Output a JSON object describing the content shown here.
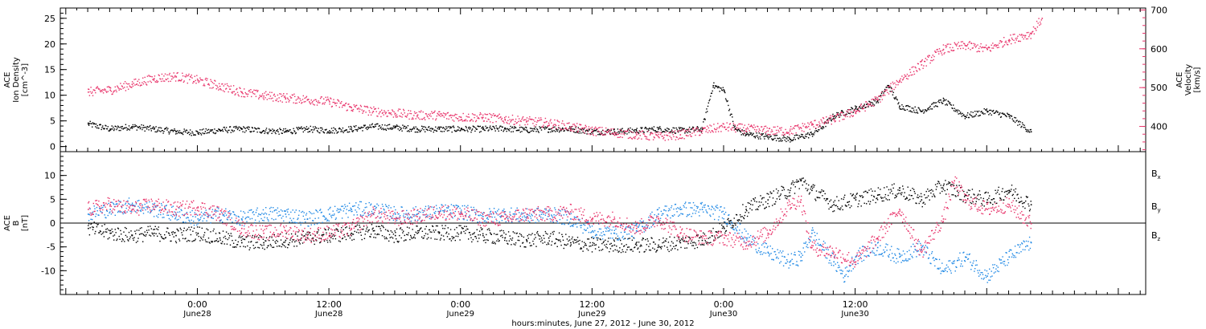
{
  "chart_data": [
    {
      "type": "scatter",
      "panel": "top",
      "left_axis": {
        "label_lines": [
          "ACE",
          "Ion Density",
          "[cm^-3]"
        ],
        "ticks": [
          0,
          5,
          10,
          15,
          20,
          25
        ],
        "range": [
          -1,
          27
        ]
      },
      "right_axis": {
        "label_lines": [
          "ACE",
          "Velocity",
          "[km/s]"
        ],
        "ticks": [
          400,
          500,
          600,
          700
        ],
        "range": [
          335,
          705
        ],
        "color": "#e8336a"
      },
      "series": [
        {
          "axis": "left",
          "color": "#000000",
          "points": [
            [
              -10.0,
              4.5
            ],
            [
              -8.0,
              3.5
            ],
            [
              -6.0,
              4.0
            ],
            [
              -4.0,
              3.5
            ],
            [
              -2.0,
              3.0
            ],
            [
              0.0,
              2.8
            ],
            [
              2.0,
              3.3
            ],
            [
              4.0,
              3.5
            ],
            [
              6.0,
              3.2
            ],
            [
              8.0,
              3.0
            ],
            [
              10.0,
              3.5
            ],
            [
              12.0,
              3.2
            ],
            [
              14.0,
              3.5
            ],
            [
              16.0,
              4.0
            ],
            [
              18.0,
              3.8
            ],
            [
              20.0,
              3.5
            ],
            [
              22.0,
              3.5
            ],
            [
              24.0,
              3.5
            ],
            [
              26.0,
              3.5
            ],
            [
              28.0,
              3.6
            ],
            [
              30.0,
              3.3
            ],
            [
              32.0,
              3.5
            ],
            [
              34.0,
              3.5
            ],
            [
              36.0,
              3.0
            ],
            [
              38.0,
              3.0
            ],
            [
              40.0,
              3.2
            ],
            [
              42.0,
              3.5
            ],
            [
              44.0,
              3.2
            ],
            [
              46.0,
              3.5
            ],
            [
              47.0,
              12.0
            ],
            [
              48.0,
              11.0
            ],
            [
              49.0,
              3.5
            ],
            [
              50.0,
              2.5
            ],
            [
              52.0,
              2.0
            ],
            [
              54.0,
              1.5
            ],
            [
              56.0,
              2.5
            ],
            [
              57.0,
              4.0
            ],
            [
              58.0,
              6.0
            ],
            [
              60.0,
              7.5
            ],
            [
              62.0,
              9.0
            ],
            [
              63.0,
              12.0
            ],
            [
              64.0,
              8.0
            ],
            [
              66.0,
              7.0
            ],
            [
              68.0,
              9.0
            ],
            [
              70.0,
              6.0
            ],
            [
              72.0,
              7.0
            ],
            [
              74.0,
              6.0
            ],
            [
              76.0,
              3.0
            ]
          ]
        },
        {
          "axis": "right",
          "color": "#e8336a",
          "points": [
            [
              -10.0,
              490
            ],
            [
              -8.0,
              495
            ],
            [
              -6.0,
              510
            ],
            [
              -4.0,
              525
            ],
            [
              -2.0,
              530
            ],
            [
              0.0,
              520
            ],
            [
              2.0,
              505
            ],
            [
              4.0,
              490
            ],
            [
              6.0,
              480
            ],
            [
              8.0,
              475
            ],
            [
              10.0,
              470
            ],
            [
              12.0,
              465
            ],
            [
              14.0,
              450
            ],
            [
              16.0,
              440
            ],
            [
              18.0,
              435
            ],
            [
              20.0,
              430
            ],
            [
              22.0,
              430
            ],
            [
              24.0,
              425
            ],
            [
              26.0,
              425
            ],
            [
              28.0,
              420
            ],
            [
              30.0,
              415
            ],
            [
              32.0,
              410
            ],
            [
              34.0,
              400
            ],
            [
              36.0,
              390
            ],
            [
              38.0,
              385
            ],
            [
              40.0,
              380
            ],
            [
              42.0,
              375
            ],
            [
              44.0,
              380
            ],
            [
              46.0,
              390
            ],
            [
              48.0,
              400
            ],
            [
              50.0,
              395
            ],
            [
              52.0,
              390
            ],
            [
              54.0,
              390
            ],
            [
              56.0,
              405
            ],
            [
              58.0,
              420
            ],
            [
              60.0,
              440
            ],
            [
              62.0,
              470
            ],
            [
              64.0,
              520
            ],
            [
              66.0,
              560
            ],
            [
              68.0,
              600
            ],
            [
              70.0,
              610
            ],
            [
              72.0,
              600
            ],
            [
              74.0,
              625
            ],
            [
              76.0,
              640
            ],
            [
              77.0,
              680
            ]
          ]
        }
      ]
    },
    {
      "type": "scatter",
      "panel": "bottom",
      "left_axis": {
        "label_lines": [
          "ACE",
          "B",
          "[nT]"
        ],
        "ticks": [
          -10,
          -5,
          0,
          5,
          10
        ],
        "range": [
          -15,
          15
        ]
      },
      "series": [
        {
          "name": "Bx",
          "color": "#000000",
          "points": [
            [
              -10.0,
              -1.0
            ],
            [
              -8.0,
              -2.0
            ],
            [
              -6.0,
              -2.5
            ],
            [
              -4.0,
              -2.0
            ],
            [
              -2.0,
              -2.5
            ],
            [
              0.0,
              -2.0
            ],
            [
              2.0,
              -3.0
            ],
            [
              4.0,
              -4.0
            ],
            [
              6.0,
              -4.0
            ],
            [
              8.0,
              -3.5
            ],
            [
              10.0,
              -3.0
            ],
            [
              12.0,
              -2.5
            ],
            [
              14.0,
              -2.0
            ],
            [
              16.0,
              -1.5
            ],
            [
              18.0,
              -2.5
            ],
            [
              20.0,
              -2.0
            ],
            [
              22.0,
              -2.0
            ],
            [
              24.0,
              -2.0
            ],
            [
              26.0,
              -2.5
            ],
            [
              28.0,
              -3.0
            ],
            [
              30.0,
              -3.5
            ],
            [
              32.0,
              -3.0
            ],
            [
              34.0,
              -4.0
            ],
            [
              36.0,
              -4.5
            ],
            [
              38.0,
              -4.5
            ],
            [
              40.0,
              -4.5
            ],
            [
              42.0,
              -4.5
            ],
            [
              44.0,
              -4.0
            ],
            [
              46.0,
              -3.5
            ],
            [
              48.0,
              -1.0
            ],
            [
              50.0,
              3.0
            ],
            [
              52.0,
              5.0
            ],
            [
              54.0,
              7.0
            ],
            [
              55.0,
              9.0
            ],
            [
              56.0,
              7.0
            ],
            [
              58.0,
              4.0
            ],
            [
              60.0,
              5.0
            ],
            [
              62.0,
              6.0
            ],
            [
              64.0,
              7.0
            ],
            [
              66.0,
              5.0
            ],
            [
              68.0,
              8.0
            ],
            [
              70.0,
              6.0
            ],
            [
              72.0,
              5.0
            ],
            [
              74.0,
              7.0
            ],
            [
              76.0,
              4.0
            ]
          ]
        },
        {
          "name": "By",
          "color": "#1e88e5",
          "points": [
            [
              -10.0,
              2.0
            ],
            [
              -8.0,
              3.0
            ],
            [
              -6.0,
              4.0
            ],
            [
              -4.0,
              3.0
            ],
            [
              -2.0,
              2.0
            ],
            [
              0.0,
              1.0
            ],
            [
              2.0,
              2.0
            ],
            [
              4.0,
              1.0
            ],
            [
              6.0,
              2.0
            ],
            [
              8.0,
              2.0
            ],
            [
              10.0,
              1.0
            ],
            [
              12.0,
              2.0
            ],
            [
              14.0,
              3.0
            ],
            [
              16.0,
              3.0
            ],
            [
              18.0,
              2.0
            ],
            [
              20.0,
              2.0
            ],
            [
              22.0,
              2.5
            ],
            [
              24.0,
              2.5
            ],
            [
              26.0,
              1.5
            ],
            [
              28.0,
              2.0
            ],
            [
              30.0,
              1.5
            ],
            [
              32.0,
              2.0
            ],
            [
              34.0,
              1.0
            ],
            [
              36.0,
              -1.5
            ],
            [
              38.0,
              -2.0
            ],
            [
              40.0,
              -1.5
            ],
            [
              42.0,
              2.0
            ],
            [
              44.0,
              3.0
            ],
            [
              46.0,
              3.0
            ],
            [
              48.0,
              2.0
            ],
            [
              50.0,
              -3.0
            ],
            [
              52.0,
              -6.0
            ],
            [
              54.0,
              -8.0
            ],
            [
              55.0,
              -7.0
            ],
            [
              56.0,
              -2.0
            ],
            [
              58.0,
              -8.0
            ],
            [
              59.0,
              -11.0
            ],
            [
              60.0,
              -7.0
            ],
            [
              62.0,
              -5.0
            ],
            [
              64.0,
              -7.0
            ],
            [
              66.0,
              -5.0
            ],
            [
              68.0,
              -10.0
            ],
            [
              70.0,
              -7.0
            ],
            [
              72.0,
              -11.0
            ],
            [
              74.0,
              -7.0
            ],
            [
              76.0,
              -4.0
            ]
          ]
        },
        {
          "name": "Bz",
          "color": "#e8336a",
          "points": [
            [
              -10.0,
              3.0
            ],
            [
              -8.0,
              4.0
            ],
            [
              -6.0,
              3.0
            ],
            [
              -4.0,
              4.0
            ],
            [
              -2.0,
              3.0
            ],
            [
              0.0,
              3.5
            ],
            [
              2.0,
              2.0
            ],
            [
              4.0,
              -1.0
            ],
            [
              6.0,
              -2.0
            ],
            [
              8.0,
              -1.5
            ],
            [
              10.0,
              -2.5
            ],
            [
              12.0,
              -2.0
            ],
            [
              14.0,
              -1.0
            ],
            [
              16.0,
              2.0
            ],
            [
              18.0,
              1.0
            ],
            [
              20.0,
              1.5
            ],
            [
              22.0,
              2.5
            ],
            [
              24.0,
              2.0
            ],
            [
              26.0,
              1.0
            ],
            [
              28.0,
              1.0
            ],
            [
              30.0,
              2.0
            ],
            [
              32.0,
              2.0
            ],
            [
              34.0,
              2.5
            ],
            [
              36.0,
              1.0
            ],
            [
              38.0,
              1.0
            ],
            [
              40.0,
              -1.0
            ],
            [
              42.0,
              1.0
            ],
            [
              44.0,
              -2.0
            ],
            [
              46.0,
              -3.0
            ],
            [
              48.0,
              -3.0
            ],
            [
              50.0,
              -4.0
            ],
            [
              52.0,
              -2.0
            ],
            [
              54.0,
              4.0
            ],
            [
              55.0,
              5.0
            ],
            [
              56.0,
              -5.0
            ],
            [
              58.0,
              -6.0
            ],
            [
              60.0,
              -8.0
            ],
            [
              62.0,
              -3.0
            ],
            [
              64.0,
              3.0
            ],
            [
              66.0,
              -6.0
            ],
            [
              68.0,
              1.0
            ],
            [
              69.0,
              9.0
            ],
            [
              70.0,
              5.0
            ],
            [
              72.0,
              3.0
            ],
            [
              74.0,
              4.0
            ],
            [
              76.0,
              0.0
            ]
          ]
        }
      ],
      "legend": {
        "placement": "right",
        "entries": [
          {
            "base": "B",
            "sub": "x",
            "color": "#000000"
          },
          {
            "base": "B",
            "sub": "y",
            "color": "#1e88e5"
          },
          {
            "base": "B",
            "sub": "z",
            "color": "#e8336a"
          }
        ]
      }
    }
  ],
  "x_axis": {
    "range_hours": [
      -12.5,
      86.5
    ],
    "ticks": [
      {
        "hour": 0,
        "time": "0:00",
        "date": "June28"
      },
      {
        "hour": 12,
        "time": "12:00",
        "date": "June28"
      },
      {
        "hour": 24,
        "time": "0:00",
        "date": "June29"
      },
      {
        "hour": 36,
        "time": "12:00",
        "date": "June29"
      },
      {
        "hour": 48,
        "time": "0:00",
        "date": "June30"
      },
      {
        "hour": 60,
        "time": "12:00",
        "date": "June30"
      }
    ],
    "title": "hours:minutes, June 27, 2012 - June 30, 2012"
  }
}
